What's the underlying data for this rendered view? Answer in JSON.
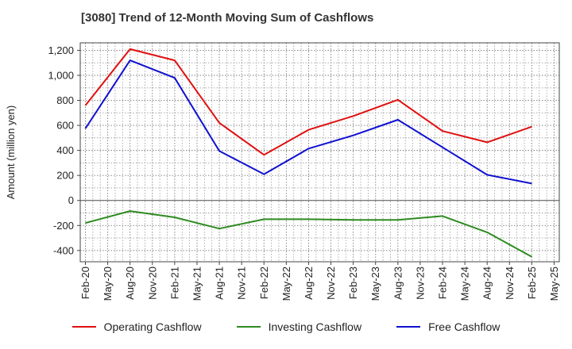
{
  "chart_data": {
    "type": "line",
    "title": "[3080]  Trend of 12-Month Moving Sum of Cashflows",
    "ylabel": "Amount (million yen)",
    "xlabel": "",
    "ylim": [
      -490,
      1260
    ],
    "yticks": [
      -400,
      -200,
      0,
      200,
      400,
      600,
      800,
      1000,
      1200
    ],
    "ytick_labels": [
      "-400",
      "-200",
      "0",
      "200",
      "400",
      "600",
      "800",
      "1,000",
      "1,200"
    ],
    "x_tick_labels": [
      "Feb-20",
      "May-20",
      "Aug-20",
      "Nov-20",
      "Feb-21",
      "May-21",
      "Aug-21",
      "Nov-21",
      "Feb-22",
      "May-22",
      "Aug-22",
      "Nov-22",
      "Feb-23",
      "May-23",
      "Aug-23",
      "Nov-23",
      "Feb-24",
      "May-24",
      "Aug-24",
      "Nov-24",
      "Feb-25",
      "May-25"
    ],
    "grid": true,
    "legend_position": "bottom",
    "series": [
      {
        "name": "Operating Cashflow",
        "color": "#e01010",
        "points": [
          [
            "Feb-20",
            760
          ],
          [
            "Aug-20",
            1210
          ],
          [
            "Feb-21",
            1120
          ],
          [
            "Aug-21",
            620
          ],
          [
            "Feb-22",
            365
          ],
          [
            "Aug-22",
            565
          ],
          [
            "Feb-23",
            675
          ],
          [
            "Aug-23",
            805
          ],
          [
            "Feb-24",
            555
          ],
          [
            "Aug-24",
            465
          ],
          [
            "Feb-25",
            590
          ]
        ]
      },
      {
        "name": "Investing Cashflow",
        "color": "#2e8b20",
        "points": [
          [
            "Feb-20",
            -180
          ],
          [
            "Aug-20",
            -85
          ],
          [
            "Feb-21",
            -135
          ],
          [
            "Aug-21",
            -225
          ],
          [
            "Feb-22",
            -150
          ],
          [
            "Aug-22",
            -150
          ],
          [
            "Feb-23",
            -155
          ],
          [
            "Aug-23",
            -155
          ],
          [
            "Feb-24",
            -125
          ],
          [
            "Aug-24",
            -255
          ],
          [
            "Feb-25",
            -450
          ]
        ]
      },
      {
        "name": "Free Cashflow",
        "color": "#1010d0",
        "points": [
          [
            "Feb-20",
            575
          ],
          [
            "Aug-20",
            1120
          ],
          [
            "Feb-21",
            980
          ],
          [
            "Aug-21",
            395
          ],
          [
            "Feb-22",
            210
          ],
          [
            "Aug-22",
            415
          ],
          [
            "Feb-23",
            520
          ],
          [
            "Aug-23",
            645
          ],
          [
            "Feb-24",
            425
          ],
          [
            "Aug-24",
            205
          ],
          [
            "Feb-25",
            135
          ]
        ]
      }
    ]
  }
}
